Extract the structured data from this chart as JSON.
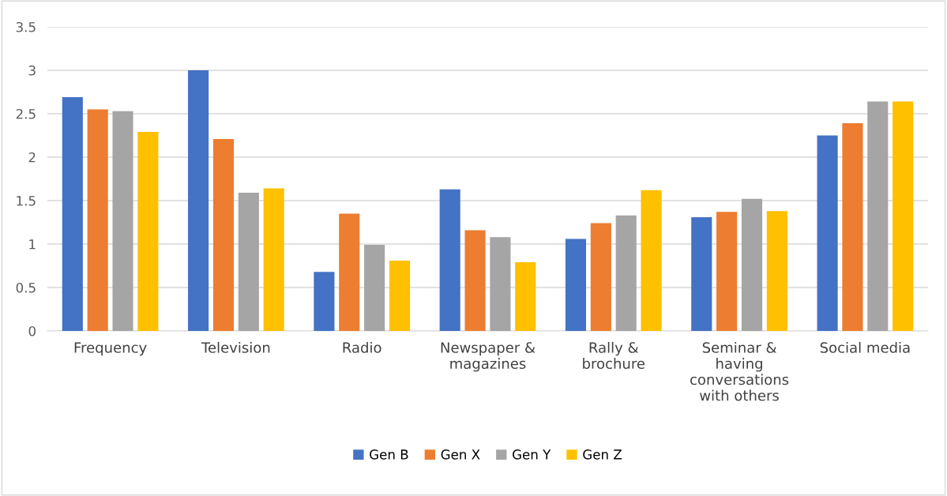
{
  "chart_data": {
    "type": "bar",
    "categories": [
      "Frequency",
      "Television",
      "Radio",
      "Newspaper & magazines",
      "Rally & brochure",
      "Seminar & having conversations with others",
      "Social media"
    ],
    "series": [
      {
        "name": "Gen B",
        "color": "#4472c4",
        "values": [
          2.69,
          3.0,
          0.68,
          1.63,
          1.06,
          1.31,
          2.25
        ]
      },
      {
        "name": "Gen X",
        "color": "#ed7d31",
        "values": [
          2.55,
          2.21,
          1.35,
          1.16,
          1.24,
          1.37,
          2.39
        ]
      },
      {
        "name": "Gen Y",
        "color": "#a5a5a5",
        "values": [
          2.53,
          1.59,
          0.99,
          1.08,
          1.33,
          1.52,
          2.64
        ]
      },
      {
        "name": "Gen Z",
        "color": "#ffc000",
        "values": [
          2.29,
          1.64,
          0.81,
          0.79,
          1.62,
          1.38,
          2.64
        ]
      }
    ],
    "ylim": [
      0,
      3.5
    ],
    "yticks": [
      0,
      0.5,
      1,
      1.5,
      2,
      2.5,
      3,
      3.5
    ],
    "grid": "y",
    "legend": "bottom"
  }
}
